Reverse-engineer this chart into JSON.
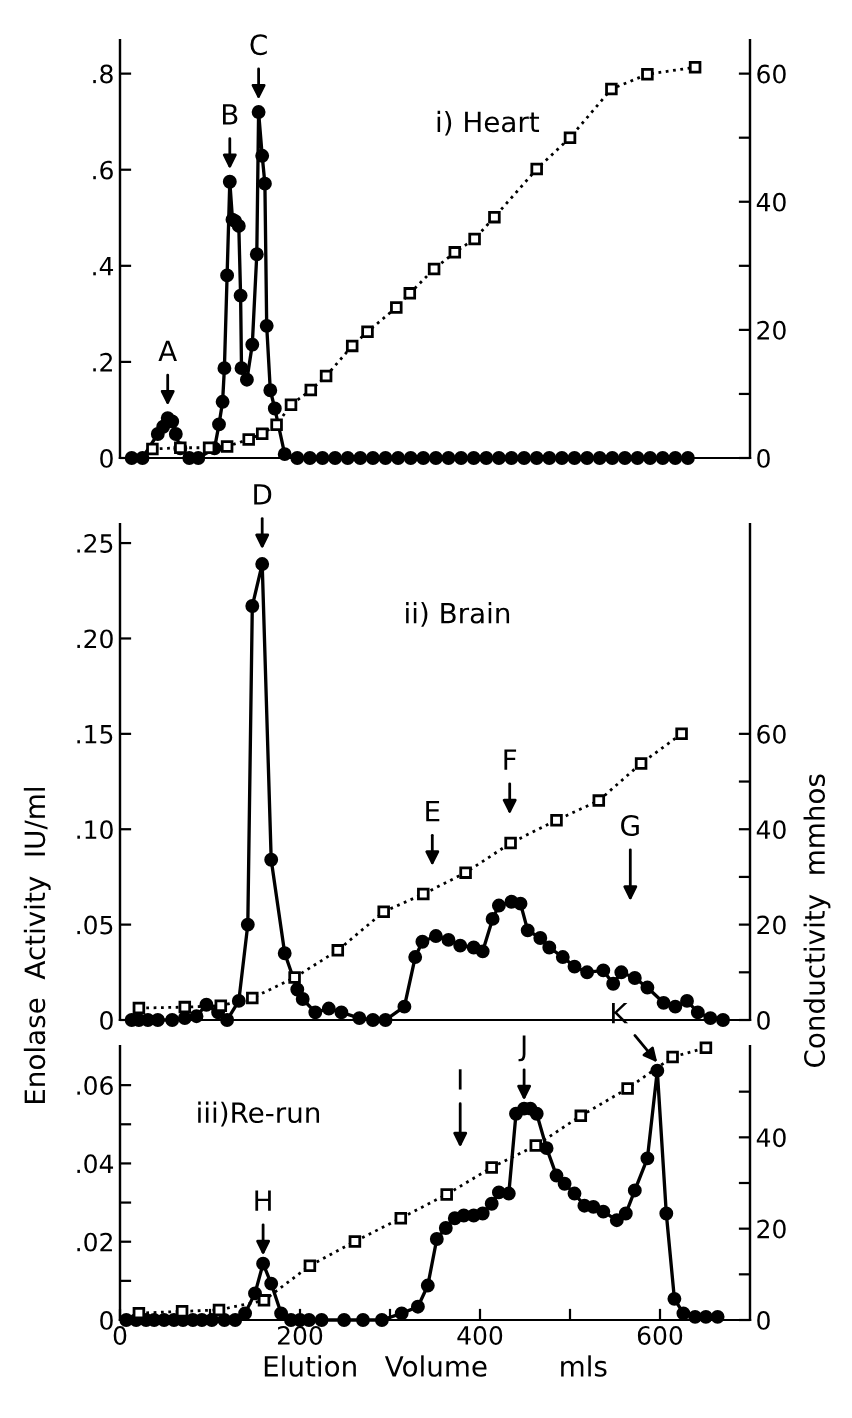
{
  "chart_data": [
    {
      "type": "line",
      "title": "i) Heart",
      "xlim": [
        0,
        700
      ],
      "ylim": [
        0,
        0.87
      ],
      "y2lim": [
        0,
        65.25
      ],
      "tick_labels": "y",
      "grid": false,
      "yticks": [
        0,
        {
          "value": 0.2,
          "label": ".2"
        },
        {
          "value": 0.4,
          "label": ".4"
        },
        {
          "value": 0.6,
          "label": ".6"
        },
        {
          "value": 0.8,
          "label": ".8"
        }
      ],
      "y2ticks": [
        0,
        {
          "value": 10,
          "label": null
        },
        20,
        {
          "value": 30,
          "label": null
        },
        40,
        {
          "value": 50,
          "label": null
        },
        60
      ],
      "series": [
        {
          "color": "#000000",
          "marker": "circle",
          "line_style": "solid",
          "x": [
            13,
            25,
            42,
            48,
            53,
            58,
            62,
            67,
            77,
            87,
            105,
            110,
            114,
            116,
            119,
            122,
            125,
            128,
            132,
            134,
            135,
            141,
            147,
            152,
            154,
            158,
            161,
            163,
            167,
            172,
            183,
            197,
            211,
            225,
            239,
            253,
            267,
            281,
            295,
            309,
            323,
            337,
            351,
            365,
            379,
            393,
            407,
            421,
            435,
            449,
            463,
            477,
            491,
            505,
            519,
            533,
            547,
            561,
            575,
            589,
            603,
            617,
            631
          ],
          "values": [
            0,
            0,
            0.05,
            0.065,
            0.083,
            0.076,
            0.05,
            0.02,
            0,
            0,
            0.02,
            0.07,
            0.117,
            0.187,
            0.38,
            0.575,
            0.496,
            0.493,
            0.483,
            0.338,
            0.187,
            0.163,
            0.236,
            0.424,
            0.72,
            0.629,
            0.571,
            0.275,
            0.141,
            0.103,
            0.008,
            0,
            0,
            0,
            0,
            0,
            0,
            0,
            0,
            0,
            0,
            0,
            0,
            0,
            0,
            0,
            0,
            0,
            0,
            0,
            0,
            0,
            0,
            0,
            0,
            0,
            0,
            0,
            0,
            0,
            0,
            0,
            0
          ]
        },
        {
          "color": "#000000",
          "marker": "square",
          "line_style": "dotted",
          "axis": "y2",
          "x": [
            36,
            67,
            99,
            119,
            143,
            158,
            174,
            190,
            212,
            229,
            258,
            275,
            307,
            322,
            349,
            372,
            394,
            416,
            463,
            500,
            546,
            586,
            639
          ],
          "values": [
            1.4,
            1.6,
            1.6,
            1.8,
            2.9,
            3.8,
            5.2,
            8.3,
            10.6,
            12.8,
            17.5,
            19.7,
            23.5,
            25.7,
            29.5,
            32.1,
            34.2,
            37.6,
            45.1,
            50,
            57.6,
            59.9,
            61
          ]
        }
      ],
      "annotations": [
        {
          "text": "A",
          "x": 53,
          "y": 0.083
        },
        {
          "text": "B",
          "x": 122,
          "y": 0.575
        },
        {
          "text": "C",
          "x": 154,
          "y": 0.72
        }
      ]
    },
    {
      "type": "line",
      "title": "ii) Brain",
      "ylabel": "Enolase  Activity  IU/ml",
      "y2label": "Conductivity  mmhos",
      "xlim": [
        0,
        700
      ],
      "ylim": [
        0,
        0.26
      ],
      "y2lim": [
        0,
        104
      ],
      "tick_labels": "y",
      "grid": false,
      "yticks": [
        0,
        {
          "value": 0.05,
          "label": ".05"
        },
        {
          "value": 0.1,
          "label": ".10"
        },
        {
          "value": 0.15,
          "label": ".15"
        },
        {
          "value": 0.2,
          "label": ".20"
        },
        {
          "value": 0.25,
          "label": ".25"
        }
      ],
      "y2ticks": [
        0,
        {
          "value": 10,
          "label": null
        },
        20,
        {
          "value": 30,
          "label": null
        },
        40,
        {
          "value": 50,
          "label": null
        },
        60
      ],
      "series": [
        {
          "color": "#000000",
          "marker": "circle",
          "line_style": "solid",
          "x": [
            13,
            21,
            31,
            42,
            58,
            72,
            85,
            96,
            109,
            119,
            132,
            142,
            147,
            158,
            168,
            183,
            197,
            203,
            217,
            232,
            246,
            266,
            281,
            295,
            316,
            328,
            336,
            351,
            365,
            378,
            393,
            403,
            414,
            421,
            435,
            445,
            453,
            467,
            477,
            492,
            505,
            519,
            537,
            548,
            557,
            572,
            586,
            604,
            617,
            630,
            642,
            656,
            670
          ],
          "values": [
            0,
            0,
            0,
            0,
            0,
            0.001,
            0.002,
            0.008,
            0.004,
            0,
            0.01,
            0.05,
            0.217,
            0.239,
            0.084,
            0.035,
            0.016,
            0.011,
            0.004,
            0.006,
            0.004,
            0.001,
            0,
            0,
            0.007,
            0.033,
            0.041,
            0.044,
            0.042,
            0.039,
            0.038,
            0.036,
            0.053,
            0.06,
            0.062,
            0.061,
            0.047,
            0.043,
            0.038,
            0.033,
            0.028,
            0.025,
            0.026,
            0.019,
            0.025,
            0.022,
            0.017,
            0.009,
            0.007,
            0.01,
            0.004,
            0.001,
            0
          ]
        },
        {
          "color": "#000000",
          "marker": "square",
          "line_style": "dotted",
          "axis": "y2",
          "x": [
            21,
            72,
            112,
            147,
            194,
            242,
            293,
            337,
            384,
            434,
            485,
            532,
            579,
            624
          ],
          "values": [
            2.5,
            2.7,
            3,
            4.6,
            8.9,
            14.6,
            22.7,
            26.4,
            30.9,
            37.1,
            41.9,
            46,
            53.8,
            60
          ]
        }
      ],
      "annotations": [
        {
          "text": "D",
          "x": 158,
          "y": 0.239
        },
        {
          "text": "E",
          "x": 347,
          "y": 0.073
        },
        {
          "text": "F",
          "x": 433,
          "y": 0.1
        },
        "G"
      ]
    },
    {
      "type": "line",
      "title": "iii)Re-run",
      "xlabel": "Elution   Volume        mls",
      "xlim": [
        0,
        700
      ],
      "ylim": [
        0,
        0.07
      ],
      "y2lim": [
        0,
        60
      ],
      "grid": false,
      "xticks": [
        0,
        {
          "value": 100,
          "label": null
        },
        200,
        {
          "value": 300,
          "label": null
        },
        400,
        {
          "value": 500,
          "label": null
        },
        600
      ],
      "yticks": [
        0,
        {
          "value": 0.01,
          "label": null
        },
        {
          "value": 0.02,
          "label": ".02"
        },
        {
          "value": 0.03,
          "label": null
        },
        {
          "value": 0.04,
          "label": ".04"
        },
        {
          "value": 0.05,
          "label": null
        },
        {
          "value": 0.06,
          "label": ".06"
        }
      ],
      "y2ticks": [
        0,
        {
          "value": 10,
          "label": null
        },
        20,
        {
          "value": 30,
          "label": null
        },
        40,
        {
          "value": 50,
          "label": null
        }
      ],
      "series": [
        {
          "color": "#000000",
          "marker": "circle",
          "line_style": "solid",
          "x": [
            7,
            18,
            29,
            38,
            49,
            60,
            70,
            81,
            91,
            102,
            116,
            128,
            139,
            150,
            159,
            168,
            179,
            190,
            200,
            210,
            224,
            249,
            270,
            291,
            313,
            331,
            342,
            352,
            362,
            372,
            382,
            393,
            403,
            413,
            421,
            432,
            440,
            449,
            456,
            463,
            474,
            485,
            494,
            505,
            516,
            526,
            537,
            552,
            562,
            572,
            586,
            597,
            607,
            616,
            626,
            639,
            651,
            664
          ],
          "values": [
            0,
            0,
            0,
            0,
            0,
            0,
            0,
            0,
            0,
            0,
            0,
            0,
            0.0017,
            0.0068,
            0.0144,
            0.0093,
            0.0017,
            0,
            0,
            0,
            0,
            0,
            0,
            0,
            0.0017,
            0.0034,
            0.0088,
            0.0207,
            0.0235,
            0.026,
            0.0267,
            0.0267,
            0.0272,
            0.0297,
            0.0326,
            0.0323,
            0.0527,
            0.054,
            0.054,
            0.0527,
            0.0439,
            0.0369,
            0.0348,
            0.0323,
            0.0292,
            0.0289,
            0.0277,
            0.0255,
            0.0272,
            0.0331,
            0.0413,
            0.0637,
            0.0272,
            0.0054,
            0.0017,
            0.0008,
            0.0008,
            0.0008
          ]
        },
        {
          "color": "#000000",
          "marker": "square",
          "line_style": "dotted",
          "axis": "y2",
          "x": [
            21,
            69,
            110,
            160,
            211,
            261,
            312,
            363,
            413,
            462,
            512,
            564,
            614,
            651
          ],
          "values": [
            1.5,
            1.9,
            2.2,
            4.3,
            11.9,
            17.2,
            22.3,
            27.5,
            33.4,
            38.2,
            44.7,
            50.7,
            57.6,
            59.6
          ]
        }
      ],
      "annotations": [
        {
          "text": "H",
          "x": 159,
          "y": 0.0144
        },
        "I",
        {
          "text": "J",
          "x": 449,
          "y": 0.054
        },
        {
          "text": "K",
          "x": 597,
          "y": 0.0637
        }
      ]
    }
  ]
}
